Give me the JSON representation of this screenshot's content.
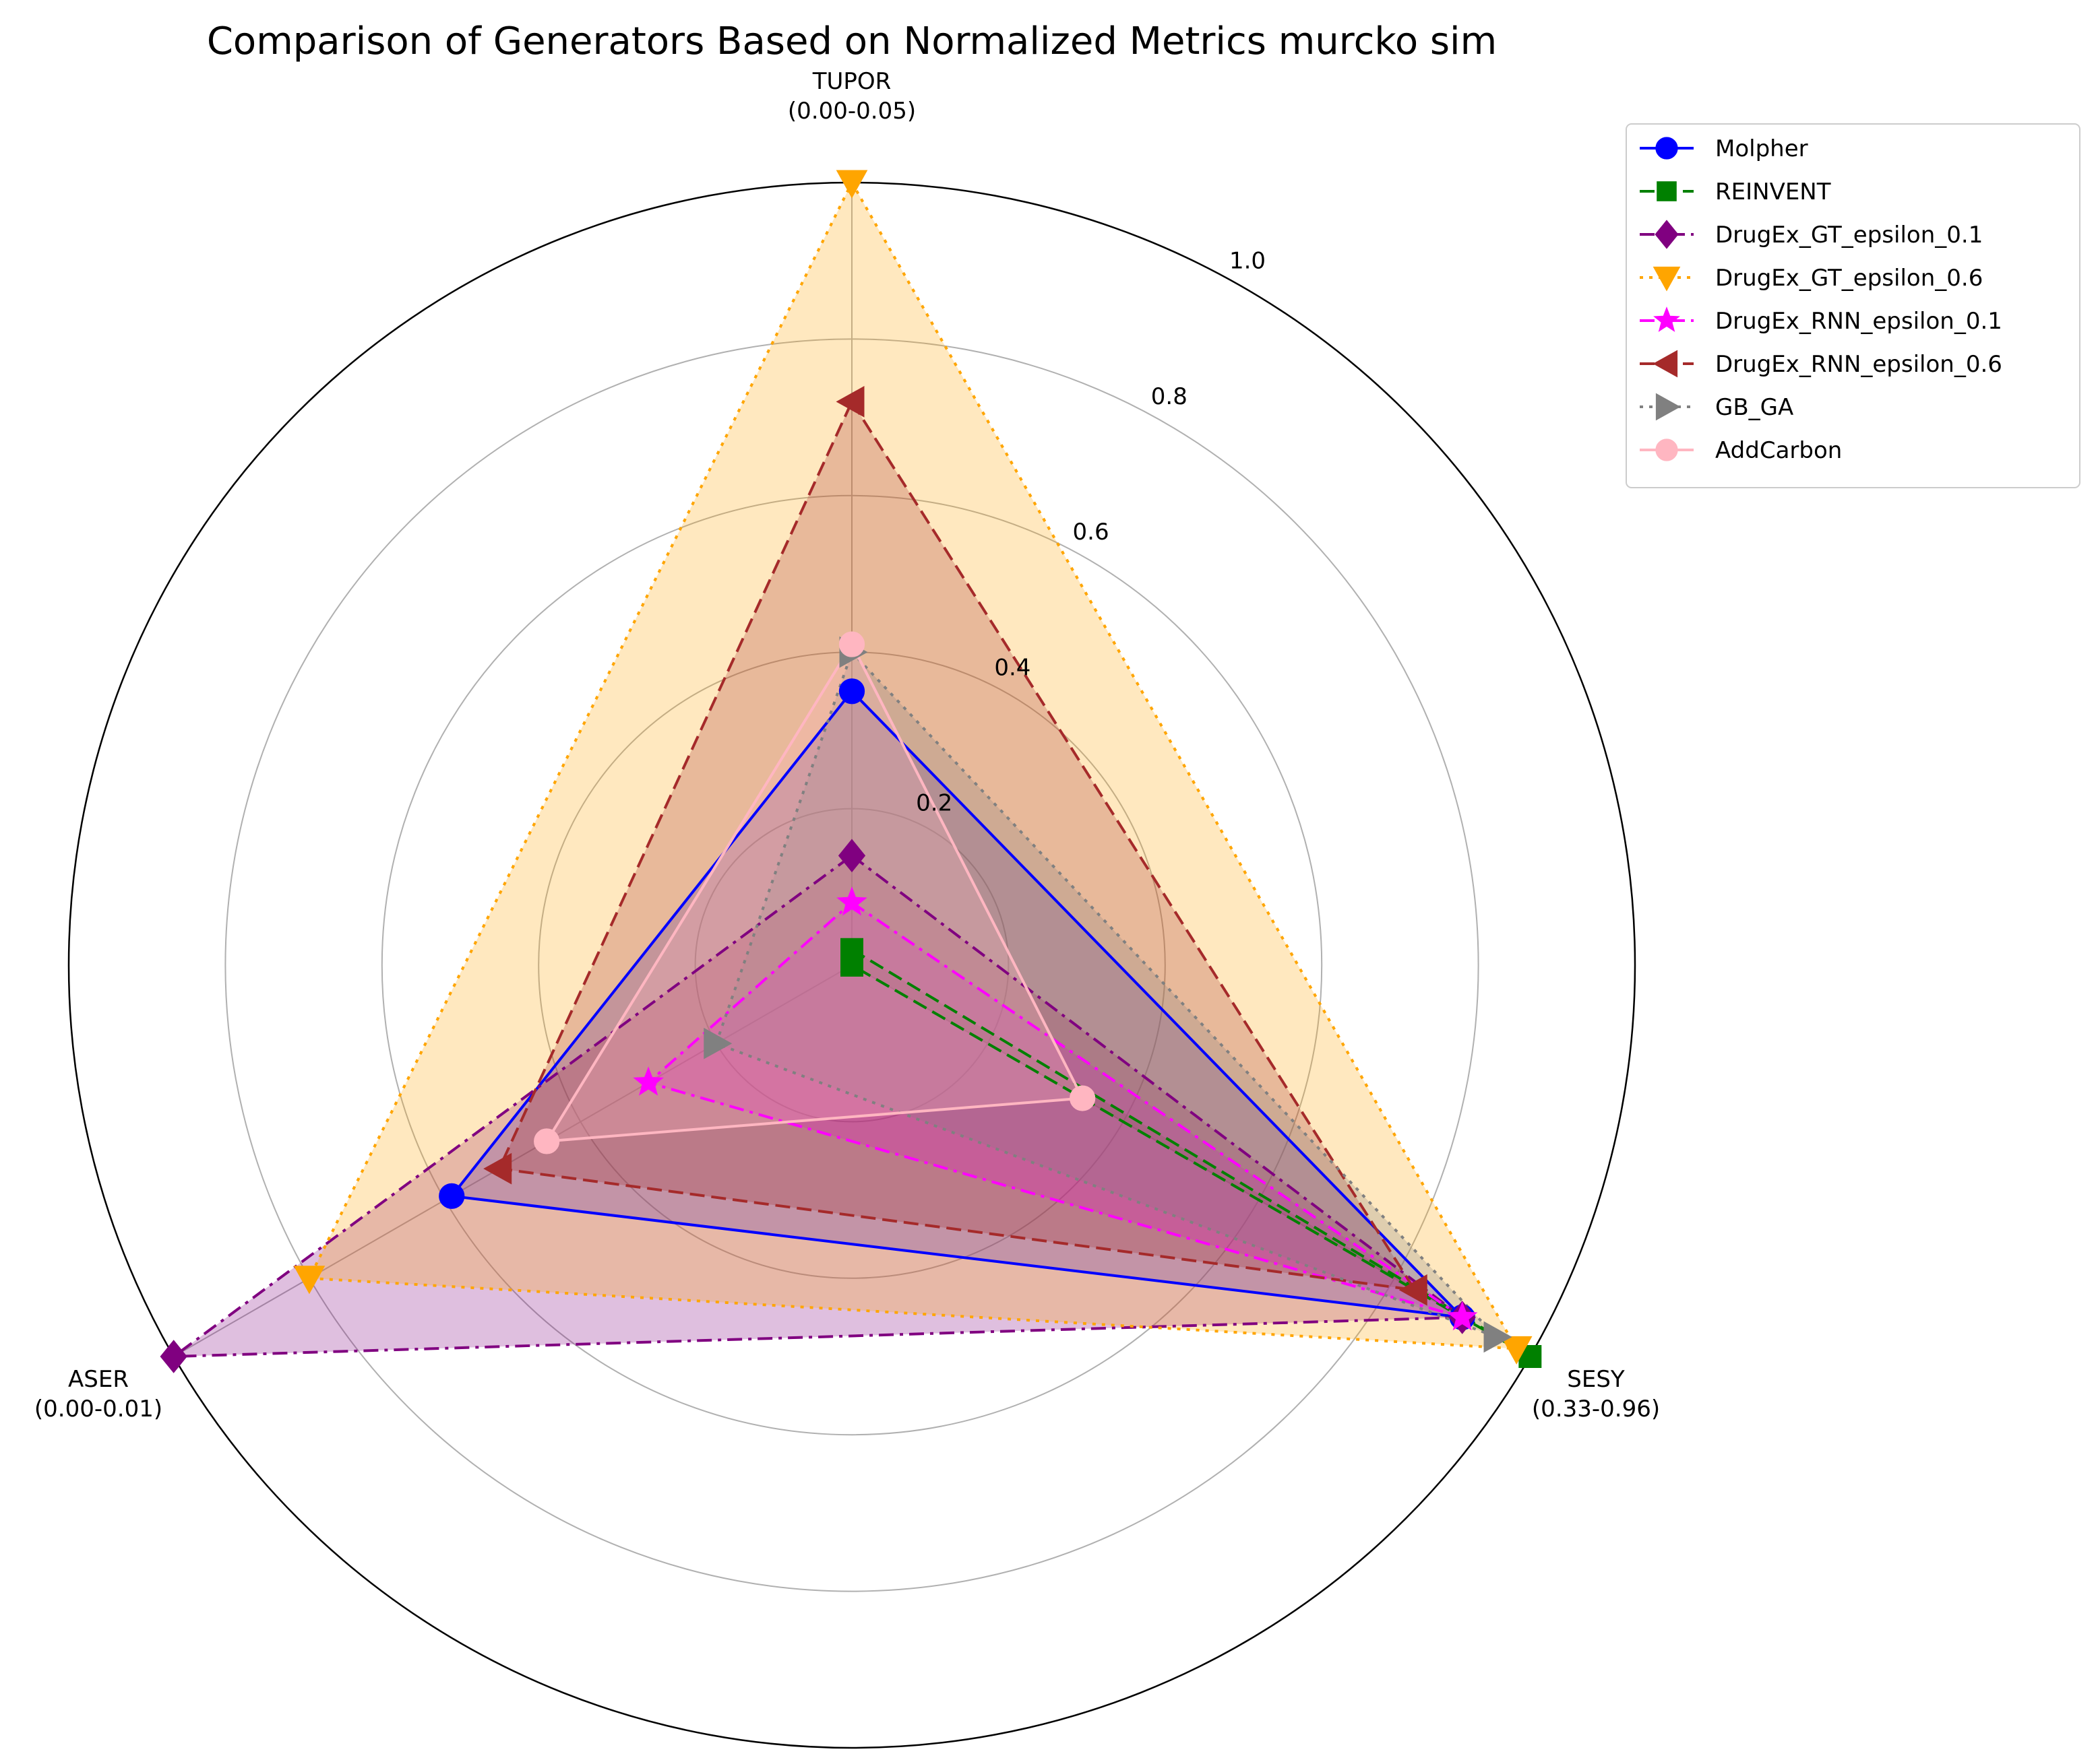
{
  "chart_data": {
    "type": "radar",
    "title": "Comparison of Generators Based on Normalized Metrics murcko sim",
    "axes": [
      {
        "name": "TUPOR",
        "range_label": "(0.00-0.05)"
      },
      {
        "name": "SESY",
        "range_label": "(0.33-0.96)"
      },
      {
        "name": "ASER",
        "range_label": "(0.00-0.01)"
      }
    ],
    "rlim": [
      0,
      1.0
    ],
    "rticks": [
      0.2,
      0.4,
      0.6,
      0.8,
      1.0
    ],
    "rtick_labels": [
      "0.2",
      "0.4",
      "0.6",
      "0.8",
      "1.0"
    ],
    "grid": true,
    "legend_position": "upper-right-outside",
    "series": [
      {
        "name": "Molpher",
        "values": [
          0.35,
          0.9,
          0.59
        ],
        "color": "#0000ff",
        "dash": "solid",
        "marker": "circle",
        "fill": false
      },
      {
        "name": "REINVENT",
        "values": [
          0.02,
          1.0,
          0.0
        ],
        "color": "#008000",
        "dash": "dashed",
        "marker": "square",
        "fill": false
      },
      {
        "name": "DrugEx_GT_epsilon_0.1",
        "values": [
          0.14,
          0.9,
          1.0
        ],
        "color": "#800080",
        "dash": "dashdot",
        "marker": "diamond",
        "fill": true
      },
      {
        "name": "DrugEx_GT_epsilon_0.6",
        "values": [
          1.0,
          0.98,
          0.8
        ],
        "color": "#ffa500",
        "dash": "dotted",
        "marker": "triangle-down",
        "fill": true
      },
      {
        "name": "DrugEx_RNN_epsilon_0.1",
        "values": [
          0.08,
          0.9,
          0.3
        ],
        "color": "#ff00ff",
        "dash": "dashdot",
        "marker": "star",
        "fill": false
      },
      {
        "name": "DrugEx_RNN_epsilon_0.6",
        "values": [
          0.72,
          0.83,
          0.52
        ],
        "color": "#a52a2a",
        "dash": "dashed",
        "marker": "triangle-left",
        "fill": true
      },
      {
        "name": "GB_GA",
        "values": [
          0.4,
          0.95,
          0.2
        ],
        "color": "#808080",
        "dash": "dotted",
        "marker": "triangle-right",
        "fill": false
      },
      {
        "name": "AddCarbon",
        "values": [
          0.41,
          0.34,
          0.45
        ],
        "color": "#ffb6c1",
        "dash": "solid",
        "marker": "circle",
        "fill": false
      }
    ]
  }
}
